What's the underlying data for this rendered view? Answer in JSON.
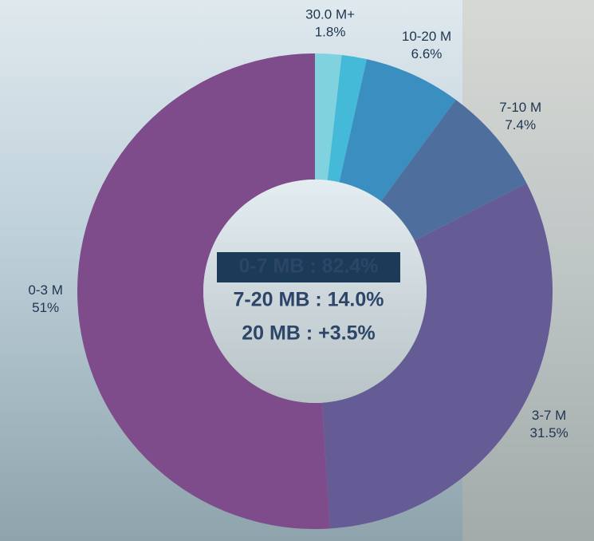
{
  "chart_data": {
    "type": "donut",
    "categories": [
      "30.0 M+",
      null,
      "10-20 M",
      "7-10 M",
      "3-7 M",
      "0-3 M"
    ],
    "values": [
      1.8,
      1.7,
      6.6,
      7.4,
      31.5,
      51
    ],
    "value_labels": [
      "1.8%",
      null,
      "6.6%",
      "7.4%",
      "31.5%",
      "51%"
    ],
    "colors": [
      "#7fd2de",
      "#45b9d8",
      "#3a8ec0",
      "#4e6f9d",
      "#655b95",
      "#7e4b8b"
    ],
    "center_lines": [
      "0-7 MB : 82.4%",
      "7-20 MB : 14.0%",
      "20 MB : +3.5%"
    ]
  }
}
